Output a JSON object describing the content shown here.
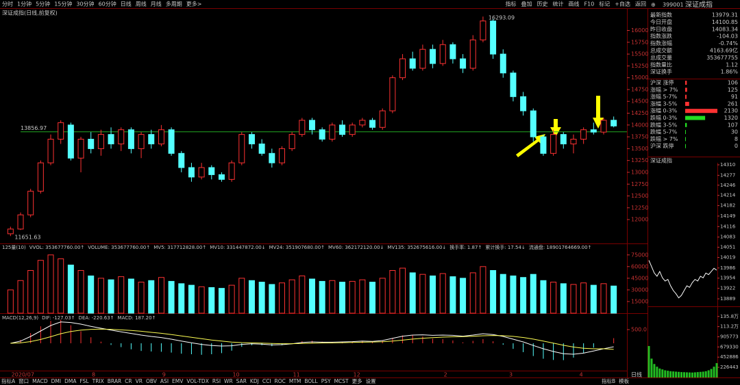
{
  "toolbar": {
    "periods": [
      "分时",
      "1分钟",
      "5分钟",
      "15分钟",
      "30分钟",
      "60分钟",
      "日线",
      "周线",
      "月线",
      "多周期",
      "更多>"
    ],
    "actions": [
      "指标",
      "叠加",
      "历史",
      "统计",
      "画线",
      "F10",
      "标记",
      "+自选",
      "返回"
    ]
  },
  "chart_data": [
    {
      "type": "candlestick",
      "title": "深证成指(日线,前复权)",
      "candles": [
        [
          11700,
          11800,
          11850,
          11651.63
        ],
        [
          11800,
          12100,
          12150,
          11780
        ],
        [
          12100,
          12600,
          12650,
          12050
        ],
        [
          12600,
          13200,
          13250,
          12550
        ],
        [
          13200,
          13700,
          13800,
          13150
        ],
        [
          13700,
          14050,
          14100,
          13600
        ],
        [
          14000,
          13300,
          14050,
          13250
        ],
        [
          13300,
          13700,
          13750,
          13000
        ],
        [
          13700,
          13500,
          13850,
          13400
        ],
        [
          13500,
          13800,
          13900,
          13350
        ],
        [
          13800,
          13600,
          13950,
          13500
        ],
        [
          13600,
          13900,
          13950,
          13450
        ],
        [
          13900,
          13500,
          13950,
          13400
        ],
        [
          13500,
          13800,
          13850,
          13300
        ],
        [
          13800,
          13600,
          13900,
          13500
        ],
        [
          13600,
          13900,
          14000,
          13550
        ],
        [
          13900,
          13400,
          13950,
          13350
        ],
        [
          13400,
          13100,
          13450,
          13000
        ],
        [
          13100,
          12900,
          13200,
          12800
        ],
        [
          12900,
          13100,
          13200,
          12850
        ],
        [
          13100,
          12950,
          13150,
          12850
        ],
        [
          12950,
          12850,
          13000,
          12800
        ],
        [
          12850,
          13200,
          13250,
          12800
        ],
        [
          13200,
          13800,
          13850,
          13150
        ],
        [
          13800,
          13600,
          13850,
          13500
        ],
        [
          13600,
          13400,
          13700,
          13350
        ],
        [
          13400,
          13200,
          13500,
          13100
        ],
        [
          13200,
          13500,
          13550,
          13150
        ],
        [
          13500,
          13800,
          13850,
          13450
        ],
        [
          13800,
          14100,
          14150,
          13750
        ],
        [
          14100,
          13900,
          14150,
          13800
        ],
        [
          13900,
          13700,
          13950,
          13650
        ],
        [
          13700,
          14000,
          14050,
          13650
        ],
        [
          14000,
          13800,
          14100,
          13750
        ],
        [
          13800,
          14000,
          14050,
          13750
        ],
        [
          14000,
          14100,
          14150,
          13950
        ],
        [
          14100,
          13950,
          14150,
          13900
        ],
        [
          13950,
          14300,
          14350,
          13900
        ],
        [
          14300,
          15000,
          15050,
          14250
        ],
        [
          15000,
          15400,
          15500,
          14950
        ],
        [
          15400,
          15200,
          15550,
          15150
        ],
        [
          15200,
          15600,
          15700,
          15150
        ],
        [
          15600,
          15300,
          15700,
          15200
        ],
        [
          15300,
          15700,
          15800,
          15250
        ],
        [
          15700,
          15400,
          15750,
          15300
        ],
        [
          15400,
          15200,
          15500,
          15100
        ],
        [
          15200,
          15800,
          15900,
          15150
        ],
        [
          15800,
          16200,
          16293.09,
          15750
        ],
        [
          16200,
          15500,
          16250,
          15400
        ],
        [
          15500,
          15100,
          15600,
          15000
        ],
        [
          15100,
          14600,
          15150,
          14500
        ],
        [
          14600,
          14300,
          14700,
          14200
        ],
        [
          14300,
          13750,
          14350,
          13650
        ],
        [
          13750,
          13400,
          13800,
          13350
        ],
        [
          13400,
          13800,
          13900,
          13350
        ],
        [
          13800,
          13600,
          13850,
          13500
        ],
        [
          13600,
          13700,
          13800,
          13400
        ],
        [
          13700,
          13900,
          13950,
          13600
        ],
        [
          13900,
          13850,
          14050,
          13800
        ],
        [
          13850,
          14100,
          14150,
          13800
        ],
        [
          14100.85,
          13979.31,
          14180,
          13950
        ]
      ],
      "up_color": "#ff3232",
      "down_color": "#54ffff",
      "ylim": [
        11510,
        16470
      ],
      "yticks": [
        12000,
        12250,
        12500,
        12750,
        13000,
        13250,
        13500,
        13750,
        14000,
        14250,
        14500,
        14750,
        15000,
        15250,
        15500,
        15750,
        16000
      ],
      "reference_line": {
        "value": 13856.97,
        "label": "13856.97",
        "color": "#22aa22"
      },
      "high_label": "16293.09",
      "low_label": "11651.63"
    },
    {
      "type": "bar",
      "title": "125量(10)",
      "indicators": [
        {
          "text": "VVOL: 353677760.00↑",
          "color": "#dddddd"
        },
        {
          "text": "VOLUME: 353677760.00↑",
          "color": "#ffff54"
        },
        {
          "text": "MV5: 317712828.00↑",
          "color": "#ff3232"
        },
        {
          "text": "MV10: 331447872.00↓",
          "color": "#ffffff"
        },
        {
          "text": "MV24: 351907680.00↑",
          "color": "#22dd22"
        },
        {
          "text": "MV60: 362172120.00↓",
          "color": "#3a5fff"
        },
        {
          "text": "MV135: 352675616.00↓",
          "color": "#dddddd"
        },
        {
          "text": "换手率: 1.87↑",
          "color": "#dddddd"
        },
        {
          "text": "累计换手: 17.54↓",
          "color": "#ffff54"
        },
        {
          "text": "流通盘: 18901764669.00↑",
          "color": "#ff54ff"
        }
      ],
      "values": [
        30000,
        42000,
        55000,
        68000,
        75000,
        70000,
        62000,
        55000,
        48000,
        45000,
        43000,
        47000,
        44000,
        40000,
        42000,
        46000,
        41000,
        38000,
        36000,
        34000,
        33000,
        32000,
        36000,
        45000,
        42000,
        40000,
        37000,
        39000,
        43000,
        48000,
        44000,
        41000,
        42000,
        40000,
        41000,
        43000,
        40000,
        45000,
        55000,
        58000,
        52000,
        50000,
        48000,
        51000,
        47000,
        45000,
        52000,
        60000,
        55000,
        50000,
        48000,
        46000,
        50000,
        42000,
        40000,
        38000,
        37000,
        39000,
        36000,
        38000,
        35000
      ],
      "ylim": [
        0,
        88000
      ],
      "yticks": [
        15000,
        30000,
        45000,
        60000,
        75000
      ]
    },
    {
      "type": "macd",
      "title": "MACD(12,26,9)",
      "indicators": [
        {
          "text": "DIF: -127.03↑",
          "color": "#ffffff"
        },
        {
          "text": "DEA: -220.63↑",
          "color": "#ffff54"
        },
        {
          "text": "MACD: 187.20↑",
          "color": "#ff54ff"
        }
      ],
      "hist": [
        0,
        128,
        374,
        620,
        820,
        860,
        660,
        440,
        220,
        60,
        -60,
        -140,
        -220,
        -280,
        -300,
        -310,
        -340,
        -380,
        -400,
        -420,
        -400,
        -360,
        -270,
        -130,
        -70,
        -72,
        -106,
        -70,
        -8,
        74,
        92,
        58,
        46,
        54,
        60,
        80,
        48,
        86,
        198,
        286,
        294,
        250,
        168,
        150,
        104,
        34,
        90,
        152,
        74,
        -54,
        -204,
        -324,
        -466,
        -564,
        -610,
        -616,
        -524,
        -356,
        -158,
        2,
        187.2
      ],
      "dif": [
        0,
        80,
        250,
        450,
        650,
        780,
        760,
        700,
        620,
        550,
        480,
        420,
        360,
        300,
        250,
        210,
        150,
        80,
        20,
        -40,
        -80,
        -100,
        -90,
        -40,
        -20,
        -30,
        -60,
        -50,
        -20,
        30,
        50,
        40,
        40,
        50,
        60,
        80,
        70,
        100,
        180,
        260,
        300,
        310,
        290,
        300,
        290,
        260,
        300,
        350,
        320,
        250,
        150,
        50,
        -80,
        -200,
        -300,
        -380,
        -400,
        -360,
        -280,
        -200,
        -127.03
      ],
      "dea": [
        0,
        16,
        63,
        140,
        240,
        350,
        430,
        480,
        510,
        520,
        510,
        490,
        470,
        440,
        400,
        365,
        320,
        270,
        220,
        170,
        120,
        80,
        45,
        25,
        15,
        6,
        -7,
        -15,
        -16,
        -7,
        4,
        11,
        17,
        23,
        30,
        40,
        46,
        57,
        81,
        117,
        153,
        185,
        206,
        225,
        238,
        243,
        255,
        274,
        283,
        277,
        252,
        212,
        153,
        82,
        5,
        -72,
        -138,
        -182,
        -201,
        -201,
        -220.63
      ],
      "ylim": [
        -1250,
        1000
      ],
      "yticks": [
        {
          "value": 500,
          "label": "500.0"
        }
      ]
    }
  ],
  "time_axis": [
    "2020/07",
    "8",
    "9",
    "10",
    "11",
    "12",
    "2",
    "3",
    "4"
  ],
  "quote": {
    "code": "399001",
    "name": "深证成指",
    "rows": [
      {
        "label": "最新指数",
        "value": "13979.31",
        "color": "#ffff54"
      },
      {
        "label": "今日开盘",
        "value": "14100.85",
        "color": "#ff3232"
      },
      {
        "label": "昨日收盘",
        "value": "14083.34",
        "color": "#ffffff"
      },
      {
        "label": "指数涨跌",
        "value": "-104.03",
        "color": "#22dd22"
      },
      {
        "label": "指数涨幅",
        "value": "-0.74%",
        "color": "#22dd22"
      },
      {
        "label": "总成交额",
        "value": "4163.69亿",
        "color": "#ffff54"
      },
      {
        "label": "总成交量",
        "value": "353677755",
        "color": "#ffff54"
      },
      {
        "label": "指数量比",
        "value": "1.12",
        "color": "#ff3232"
      },
      {
        "label": "深证换手",
        "value": "1.86%",
        "color": "#ffffff"
      }
    ]
  },
  "breadth": {
    "rows": [
      {
        "label": "沪深 涨停",
        "value": 106,
        "color": "#ff3232"
      },
      {
        "label": "涨幅 > 7%",
        "value": 125,
        "color": "#ff3232"
      },
      {
        "label": "涨幅 5-7%",
        "value": 91,
        "color": "#ff3232"
      },
      {
        "label": "涨幅 3-5%",
        "value": 261,
        "color": "#ff3232"
      },
      {
        "label": "涨幅 0-3%",
        "value": 2130,
        "color": "#ff3232"
      },
      {
        "label": "跌幅 0-3%",
        "value": 1320,
        "color": "#22dd22"
      },
      {
        "label": "跌幅 3-5%",
        "value": 107,
        "color": "#22dd22"
      },
      {
        "label": "跌幅 5-7%",
        "value": 30,
        "color": "#22dd22"
      },
      {
        "label": "跌幅 > 7%",
        "value": 8,
        "color": "#22dd22"
      },
      {
        "label": "沪深 跌停",
        "value": 0,
        "color": "#22dd22"
      }
    ]
  },
  "intraday": {
    "title": "深证成指",
    "price_ticks": [
      14310,
      14277,
      14246,
      14214,
      14182,
      14149,
      14116,
      14083,
      14051,
      14019,
      13986,
      13954,
      13922,
      13889
    ],
    "ylim": [
      13889,
      14310
    ],
    "values": [
      14010,
      13990,
      13970,
      13960,
      13975,
      13955,
      13945,
      13950,
      13930,
      13915,
      13905,
      13892,
      13900,
      13915,
      13930,
      13925,
      13940,
      13950,
      13945,
      13960,
      13955,
      13970,
      13965,
      13975,
      13985,
      13979
    ],
    "volume_ticks": [
      {
        "value": 1358000,
        "label": "135.8万"
      },
      {
        "value": 1132000,
        "label": "113.2万"
      },
      905773,
      679330,
      452886,
      226443
    ],
    "volume_ylim": [
      0,
      1400000
    ],
    "volumes": [
      700000,
      420000,
      300000,
      240000,
      200000,
      180000,
      160000,
      150000,
      140000,
      135000,
      130000,
      125000,
      120000,
      118000,
      115000,
      112000,
      110000,
      115000,
      120000,
      125000,
      130000,
      140000,
      160000,
      190000,
      240000,
      320000
    ]
  },
  "tabs": {
    "left": [
      "指标A",
      "窗口",
      "MACD",
      "DMI",
      "DMA",
      "FSL",
      "TRIX",
      "BRAR",
      "CR",
      "VR",
      "OBV",
      "ASI",
      "EMV",
      "VOL-TDX",
      "RSI",
      "WR",
      "SAR",
      "KDJ",
      "CCI",
      "ROC",
      "MTM",
      "BOLL",
      "PSY",
      "MCST",
      "更多",
      "设置"
    ],
    "right": [
      "指标B",
      "模板"
    ],
    "period": "日线"
  }
}
